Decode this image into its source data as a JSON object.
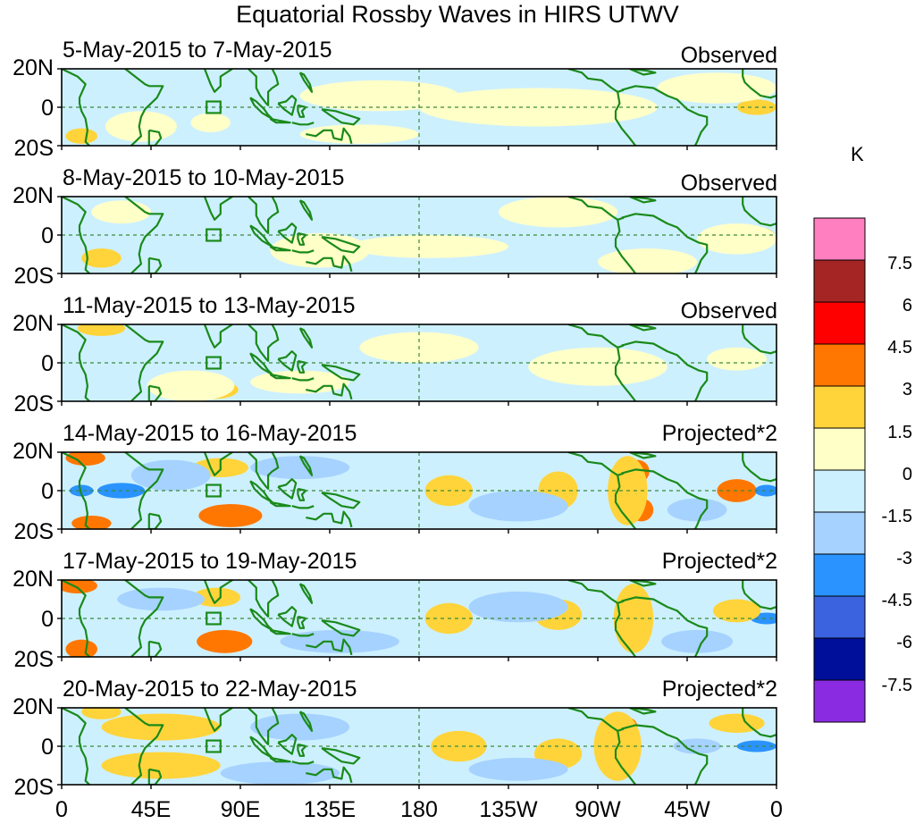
{
  "title": "Equatorial Rossby Waves in HIRS UTWV",
  "unit": "K",
  "y_axis_labels": [
    "20N",
    "0",
    "20S"
  ],
  "x_axis_labels": [
    "0",
    "45E",
    "90E",
    "135E",
    "180",
    "135W",
    "90W",
    "45W",
    "0"
  ],
  "panels": [
    {
      "date_range": "5-May-2015 to 7-May-2015",
      "tag": "Observed",
      "kind": "observed",
      "seed": 1
    },
    {
      "date_range": "8-May-2015 to 10-May-2015",
      "tag": "Observed",
      "kind": "observed",
      "seed": 2
    },
    {
      "date_range": "11-May-2015 to 13-May-2015",
      "tag": "Observed",
      "kind": "observed",
      "seed": 3
    },
    {
      "date_range": "14-May-2015 to 16-May-2015",
      "tag": "Projected*2",
      "kind": "projected",
      "seed": 4
    },
    {
      "date_range": "17-May-2015 to 19-May-2015",
      "tag": "Projected*2",
      "kind": "projected",
      "seed": 5
    },
    {
      "date_range": "20-May-2015 to 22-May-2015",
      "tag": "Projected*2",
      "kind": "projected",
      "seed": 6
    }
  ],
  "colorbar": {
    "levels": [
      "7.5",
      "6",
      "4.5",
      "3",
      "1.5",
      "0",
      "-1.5",
      "-3",
      "-4.5",
      "-6",
      "-7.5"
    ],
    "colors": [
      "#ff7fc0",
      "#a52525",
      "#ff0000",
      "#ff7700",
      "#ffd43a",
      "#ffffc8",
      "#cdf0ff",
      "#a6d2ff",
      "#2a93ff",
      "#3b63e0",
      "#000f9a",
      "#8a2be2"
    ]
  },
  "chart_data": {
    "type": "heatmap",
    "title": "Equatorial Rossby Waves in HIRS UTWV",
    "x_ticks": [
      "0",
      "45E",
      "90E",
      "135E",
      "180",
      "135W",
      "90W",
      "45W",
      "0"
    ],
    "y_ticks": [
      "20N",
      "0",
      "20S"
    ],
    "x_range_deg": [
      0,
      360
    ],
    "y_range_deg": [
      -20,
      20
    ],
    "color_scale_K": [
      -7.5,
      -6,
      -4.5,
      -3,
      -1.5,
      0,
      1.5,
      3,
      4.5,
      6,
      7.5
    ],
    "panels": [
      "5-May-2015 to 7-May-2015",
      "8-May-2015 to 10-May-2015",
      "11-May-2015 to 13-May-2015",
      "14-May-2015 to 16-May-2015",
      "17-May-2015 to 19-May-2015",
      "20-May-2015 to 22-May-2015"
    ],
    "reference_lines": [
      "equator (0)",
      "dateline (180)"
    ]
  },
  "colors": {
    "coastline": "#1a8a1a",
    "frame": "#000000",
    "background_field": "#cdf0ff"
  }
}
